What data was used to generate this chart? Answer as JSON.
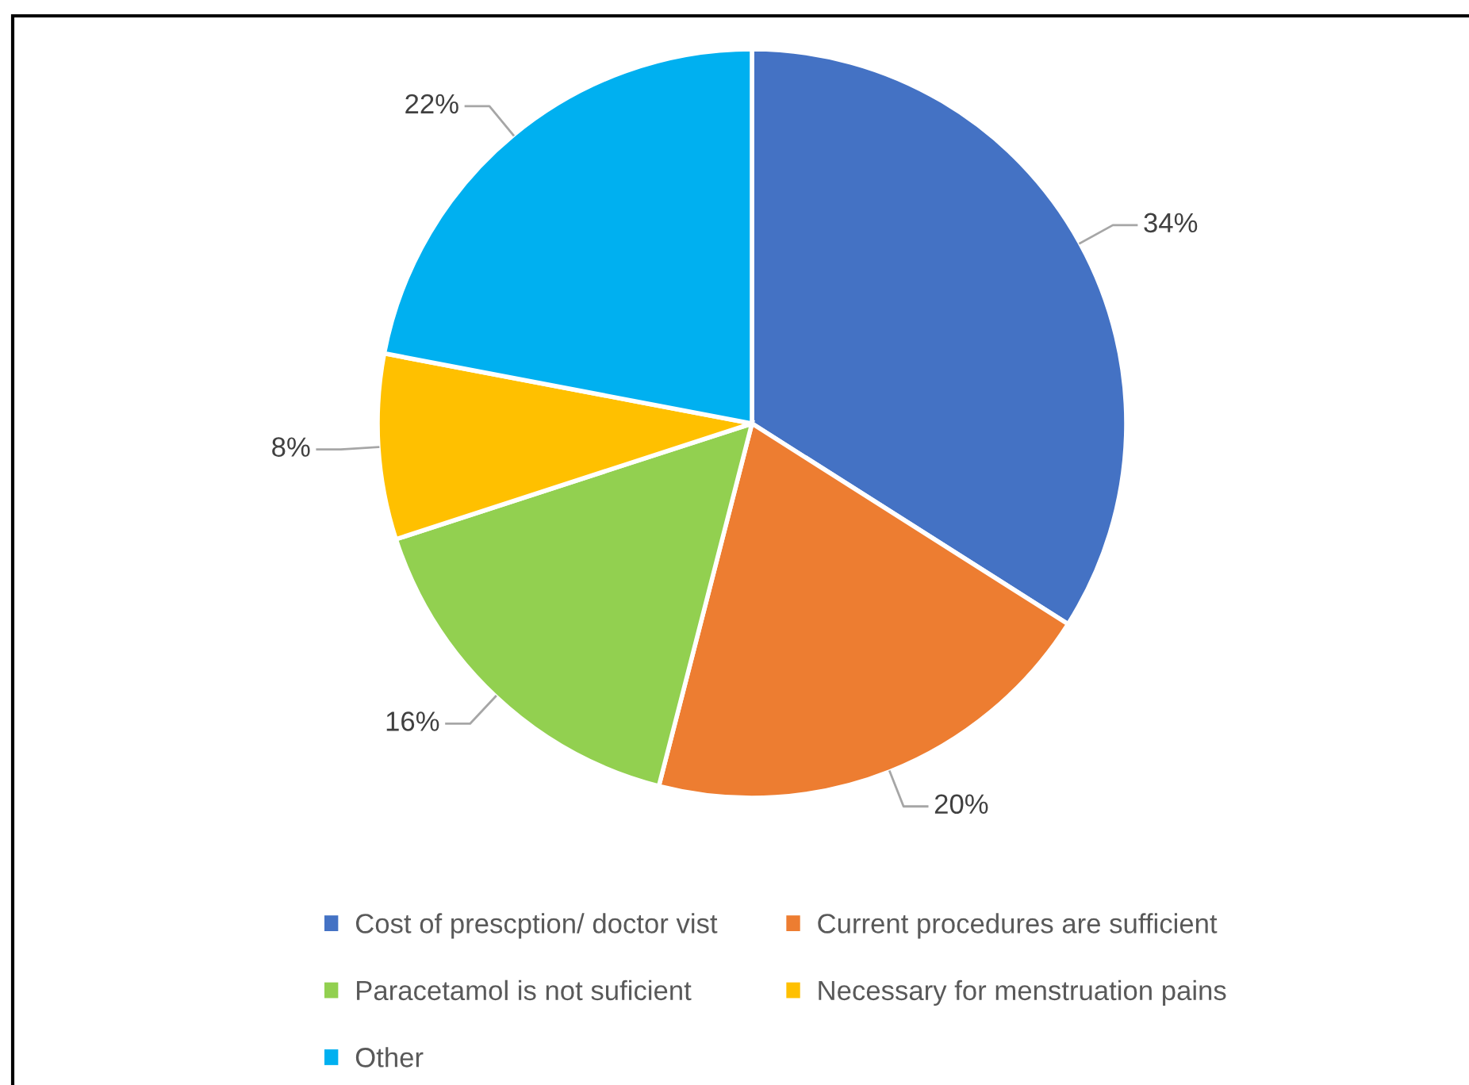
{
  "chart_data": {
    "type": "pie",
    "categories": [
      "Cost of prescption/ doctor vist",
      "Current procedures are sufficient",
      "Paracetamol is not suficient",
      "Necessary for menstruation pains",
      "Other"
    ],
    "values": [
      34,
      20,
      16,
      8,
      22
    ],
    "colors": [
      "#4472c4",
      "#ed7d31",
      "#92d050",
      "#ffc000",
      "#00b0f0"
    ],
    "value_labels": [
      "34%",
      "20%",
      "16%",
      "8%",
      "22%"
    ],
    "legend": "bottom"
  }
}
